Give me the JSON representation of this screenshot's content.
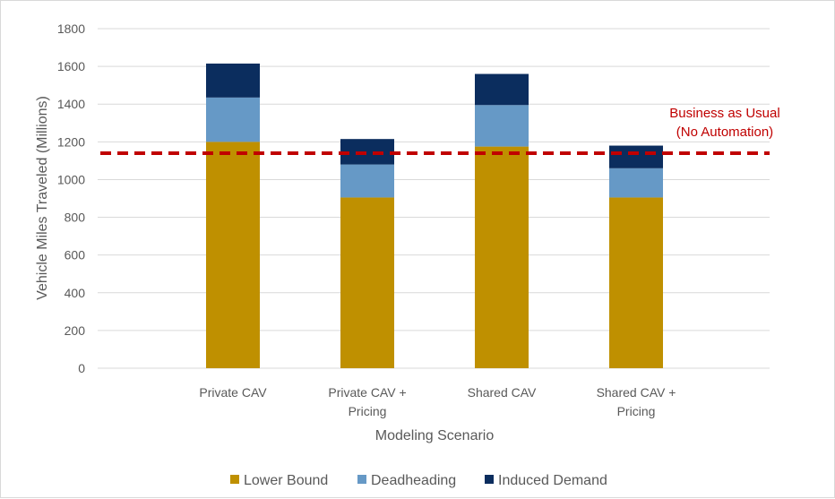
{
  "chart_data": {
    "type": "bar",
    "stacked": true,
    "title": "",
    "xlabel": "Modeling Scenario",
    "ylabel": "Vehicle Miles Traveled (Millions)",
    "ylim": [
      0,
      1800
    ],
    "yticks": [
      0,
      200,
      400,
      600,
      800,
      1000,
      1200,
      1400,
      1600,
      1800
    ],
    "grid": true,
    "legend_position": "bottom",
    "categories": [
      [
        "Private CAV"
      ],
      [
        "Private CAV +",
        "Pricing"
      ],
      [
        "Shared CAV"
      ],
      [
        "Shared CAV +",
        "Pricing"
      ]
    ],
    "series": [
      {
        "name": "Lower Bound",
        "color": "#bf9000",
        "values": [
          1200,
          905,
          1175,
          905
        ]
      },
      {
        "name": "Deadheading",
        "color": "#6699c6",
        "values": [
          235,
          175,
          220,
          155
        ]
      },
      {
        "name": "Induced Demand",
        "color": "#0b2d5e",
        "values": [
          180,
          135,
          165,
          120
        ]
      }
    ],
    "reference_line": {
      "value": 1140,
      "color": "#c00000",
      "label": [
        "Business as Usual",
        "(No Automation)"
      ]
    }
  }
}
